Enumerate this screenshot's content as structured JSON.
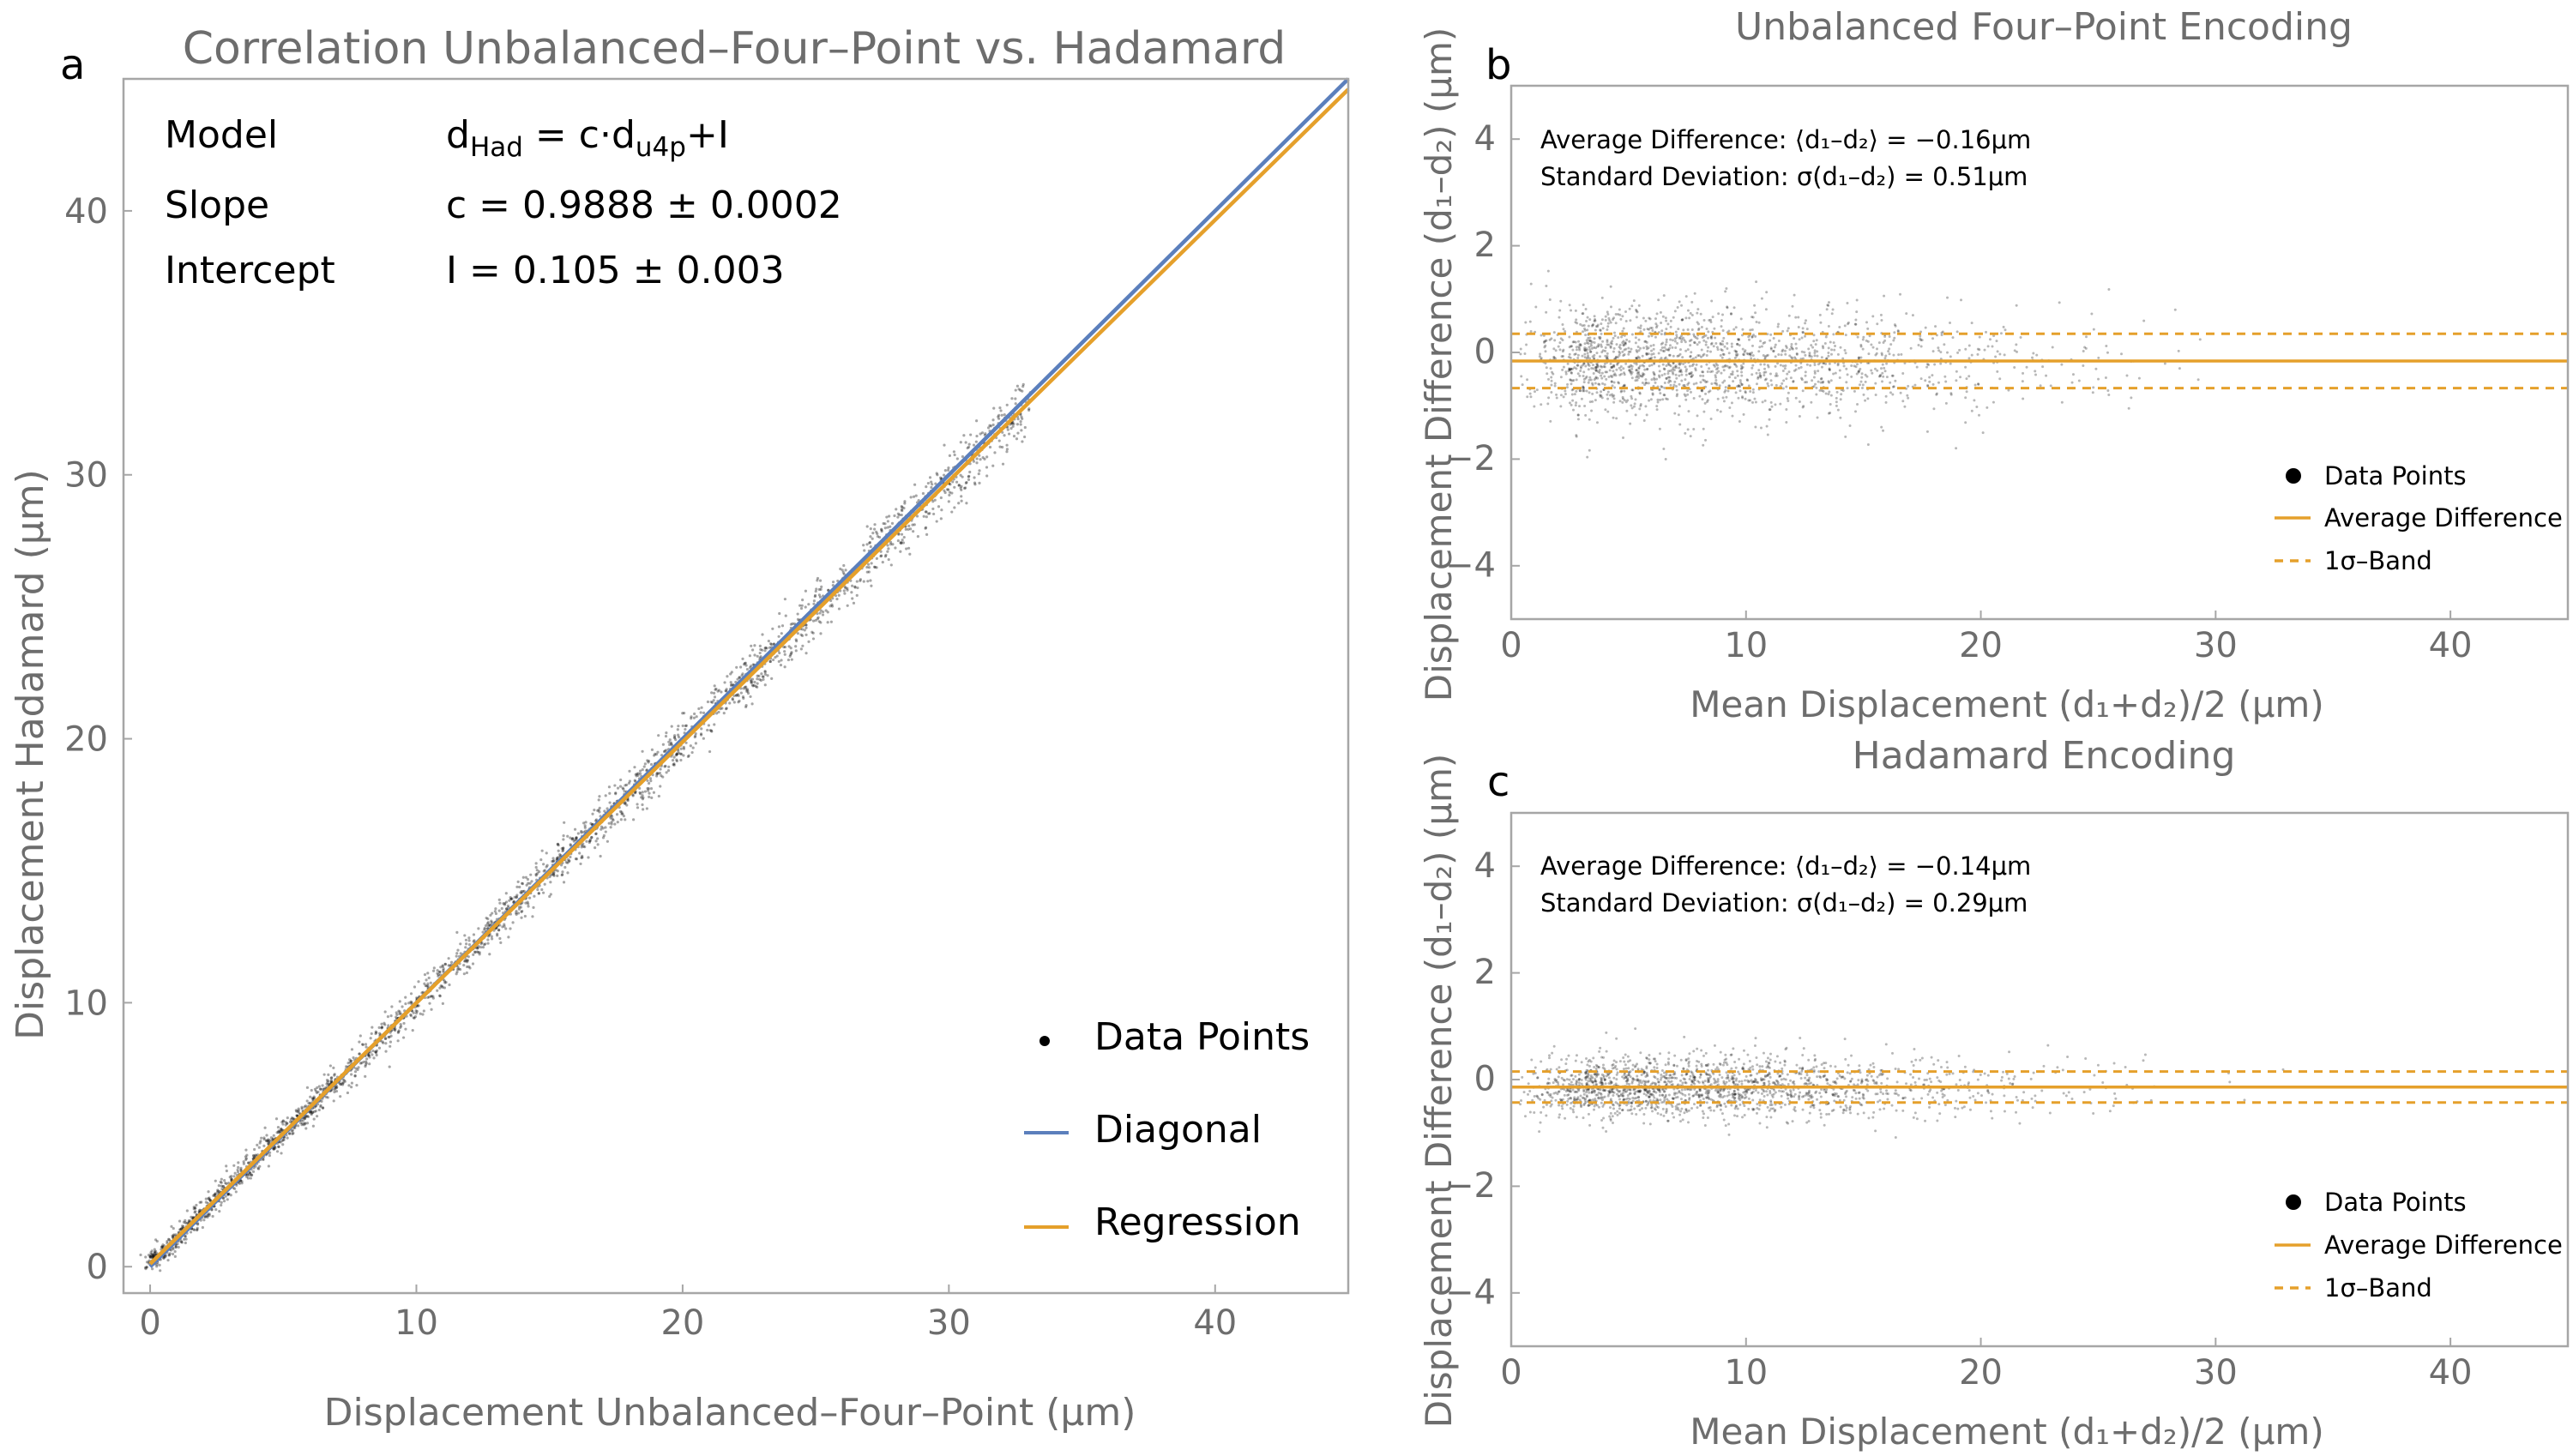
{
  "colors": {
    "diagonal": "#5b7fbc",
    "regression": "#e5a02b",
    "points": "#000000",
    "axis_text": "#6d6d6d",
    "frame": "#a6a6a6"
  },
  "chart_data": [
    {
      "panel": "a",
      "type": "scatter",
      "title": "Correlation Unbalanced–Four–Point vs. Hadamard",
      "xlabel": "Displacement Unbalanced–Four–Point (μm)",
      "ylabel": "Displacement Hadamard (μm)",
      "xlim": [
        -1,
        45
      ],
      "ylim": [
        -1,
        45
      ],
      "xticks": [
        0,
        10,
        20,
        30,
        40
      ],
      "yticks": [
        0,
        10,
        20,
        30,
        40
      ],
      "model": {
        "rows": [
          {
            "label": "Model",
            "value_main": "d",
            "value_sub1": "Had",
            "value_mid": " = c·d",
            "value_sub2": "u4p",
            "value_end": "+I"
          },
          {
            "label": "Slope",
            "value": "c = 0.9888 ± 0.0002"
          },
          {
            "label": "Intercept",
            "value": "I = 0.105 ± 0.003"
          }
        ]
      },
      "series": [
        {
          "name": "Diagonal",
          "type": "line",
          "slope": 1.0,
          "intercept": 0.0,
          "x_range": [
            0,
            45
          ]
        },
        {
          "name": "Regression",
          "type": "line",
          "slope": 0.9888,
          "intercept": 0.105,
          "x_range": [
            0,
            45
          ]
        },
        {
          "name": "Data Points",
          "type": "scatter",
          "description_range_x": [
            0,
            33
          ],
          "spread": 0.6
        }
      ],
      "legend": [
        "Data Points",
        "Diagonal",
        "Regression"
      ],
      "legend_position": "bottom-right"
    },
    {
      "panel": "b",
      "type": "scatter",
      "title": "Unbalanced Four–Point Encoding",
      "xlabel": "Mean Displacement (d₁+d₂)/2 (μm)",
      "ylabel": "Displacement Difference (d₁–d₂) (μm)",
      "xlim": [
        0,
        45
      ],
      "ylim": [
        -5,
        5
      ],
      "xticks": [
        0,
        10,
        20,
        30,
        40
      ],
      "yticks": [
        4,
        2,
        0,
        -2,
        -4
      ],
      "mean_difference": -0.16,
      "std_difference": 0.51,
      "stats_lines": [
        "Average Difference: ⟨d₁–d₂⟩ = −0.16μm",
        "Standard Deviation: σ(d₁–d₂) = 0.51μm"
      ],
      "series": [
        {
          "name": "Data Points",
          "type": "scatter"
        },
        {
          "name": "Average Difference",
          "type": "hline",
          "y": -0.16
        },
        {
          "name": "1σ–Band",
          "type": "hline-dashed",
          "y": [
            0.35,
            -0.67
          ]
        }
      ],
      "legend": [
        "Data Points",
        "Average Difference",
        "1σ–Band"
      ],
      "legend_position": "bottom-right"
    },
    {
      "panel": "c",
      "type": "scatter",
      "title": "Hadamard Encoding",
      "xlabel": "Mean Displacement (d₁+d₂)/2 (μm)",
      "ylabel": "Displacement Difference (d₁–d₂) (μm)",
      "xlim": [
        0,
        45
      ],
      "ylim": [
        -5,
        5
      ],
      "xticks": [
        0,
        10,
        20,
        30,
        40
      ],
      "yticks": [
        4,
        2,
        0,
        -2,
        -4
      ],
      "mean_difference": -0.14,
      "std_difference": 0.29,
      "stats_lines": [
        "Average Difference: ⟨d₁–d₂⟩ = −0.14μm",
        "Standard Deviation: σ(d₁–d₂) = 0.29μm"
      ],
      "series": [
        {
          "name": "Data Points",
          "type": "scatter"
        },
        {
          "name": "Average Difference",
          "type": "hline",
          "y": -0.14
        },
        {
          "name": "1σ–Band",
          "type": "hline-dashed",
          "y": [
            0.15,
            -0.43
          ]
        }
      ],
      "legend": [
        "Data Points",
        "Average Difference",
        "1σ–Band"
      ],
      "legend_position": "bottom-right"
    }
  ]
}
